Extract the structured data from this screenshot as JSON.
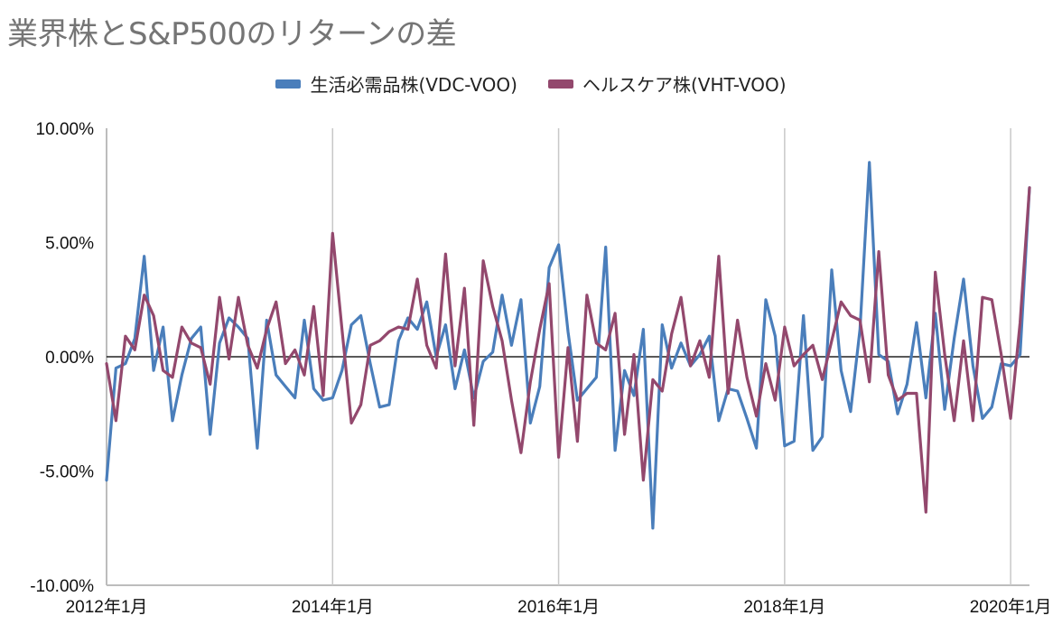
{
  "chart_data": {
    "type": "line",
    "title": "業界株とS&P500のリターンの差",
    "xlabel": "",
    "ylabel": "",
    "x_start": "2012-01",
    "x_end": "2020-03",
    "x_tick_labels": [
      "2012年1月",
      "2014年1月",
      "2016年1月",
      "2018年1月",
      "2020年1月"
    ],
    "x_tick_dates": [
      "2012-01",
      "2014-01",
      "2016-01",
      "2018-01",
      "2020-01"
    ],
    "y_tick_labels": [
      "10.00%",
      "5.00%",
      "0.00%",
      "-5.00%",
      "-10.00%"
    ],
    "ylim": [
      -10,
      10
    ],
    "y_unit": "%",
    "grid": "vertical",
    "legend_position": "top",
    "series": [
      {
        "name": "生活必需品株(VDC-VOO)",
        "color": "#4a7ebb",
        "values": [
          -5.4,
          -0.5,
          -0.3,
          0.8,
          4.4,
          -0.6,
          1.3,
          -2.8,
          -0.8,
          0.8,
          1.3,
          -3.4,
          0.6,
          1.7,
          1.3,
          0.8,
          -4.0,
          1.6,
          -0.8,
          -1.3,
          -1.8,
          1.6,
          -1.4,
          -1.9,
          -1.8,
          -0.6,
          1.4,
          1.8,
          -0.3,
          -2.2,
          -2.1,
          0.7,
          1.7,
          1.2,
          2.4,
          0.0,
          1.4,
          -1.4,
          0.3,
          -1.8,
          -0.2,
          0.2,
          2.7,
          0.5,
          2.5,
          -2.9,
          -1.3,
          3.9,
          4.9,
          1.1,
          -1.9,
          -1.4,
          -0.9,
          4.8,
          -4.1,
          -0.6,
          -1.7,
          1.2,
          -7.5,
          1.4,
          -0.5,
          0.6,
          -0.4,
          0.1,
          0.9,
          -2.8,
          -1.4,
          -1.5,
          -2.7,
          -4.0,
          2.5,
          0.9,
          -3.9,
          -3.7,
          1.8,
          -4.1,
          -3.5,
          3.8,
          -0.6,
          -2.4,
          1.2,
          8.5,
          0.1,
          -0.2,
          -2.5,
          -1.2,
          1.5,
          -1.8,
          1.9,
          -2.3,
          0.8,
          3.4,
          -0.4,
          -2.7,
          -2.2,
          -0.3,
          -0.4,
          0.1,
          7.4
        ],
        "source_vertex_count": 99,
        "render_last_value_as_endpoint": true
      },
      {
        "name": "ヘルスケア株(VHT-VOO)",
        "color": "#93486d",
        "values": [
          -0.3,
          -2.8,
          0.9,
          0.3,
          2.7,
          1.8,
          -0.6,
          -0.9,
          1.3,
          0.6,
          0.4,
          -1.2,
          2.6,
          -0.1,
          2.6,
          0.5,
          -0.5,
          1.2,
          2.4,
          -0.3,
          0.3,
          -0.8,
          2.2,
          -1.7,
          5.4,
          1.2,
          -2.9,
          -2.1,
          0.5,
          0.7,
          1.1,
          1.3,
          1.2,
          3.4,
          0.5,
          -0.5,
          4.5,
          -0.4,
          3.0,
          -3.0,
          4.2,
          2.2,
          0.7,
          -1.9,
          -4.2,
          -1.1,
          1.2,
          3.2,
          -4.4,
          0.4,
          -3.7,
          2.7,
          0.6,
          0.3,
          1.9,
          -3.4,
          0.1,
          -5.4,
          -1.0,
          -1.5,
          1.0,
          2.6,
          -0.4,
          0.7,
          -0.9,
          4.4,
          -1.6,
          1.6,
          -0.9,
          -2.6,
          -0.3,
          -1.9,
          1.3,
          -0.4,
          0.1,
          0.5,
          -1.0,
          0.7,
          2.4,
          1.8,
          1.6,
          -1.1,
          4.6,
          -0.8,
          -1.9,
          -1.6,
          -1.6,
          -6.8,
          3.7,
          0.1,
          -2.8,
          0.7,
          -2.8,
          2.6,
          2.5,
          0.1,
          -2.7,
          1.5,
          7.4
        ],
        "source_vertex_count": 99,
        "render_last_value_as_endpoint": true
      }
    ]
  }
}
